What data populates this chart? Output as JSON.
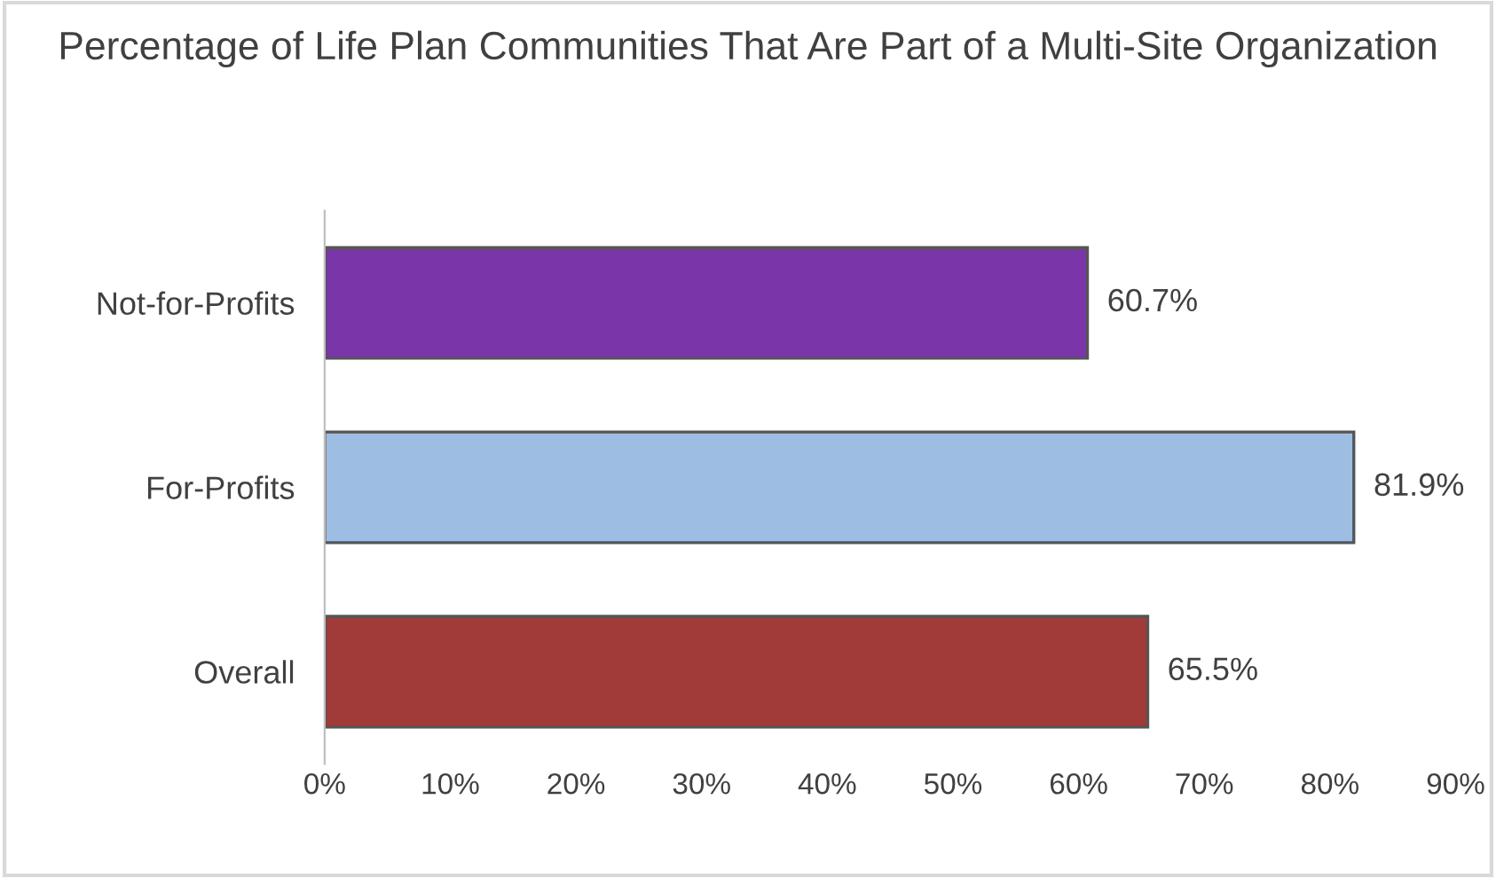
{
  "chart_data": {
    "type": "bar",
    "orientation": "horizontal",
    "title": "Percentage of Life Plan Communities That Are Part of a Multi-Site Organization",
    "categories": [
      "Not-for-Profits",
      "For-Profits",
      "Overall"
    ],
    "values": [
      60.7,
      81.9,
      65.5
    ],
    "colors": [
      "#7a36a9",
      "#9ebde3",
      "#a03b39"
    ],
    "value_labels": [
      "60.7%",
      "81.9%",
      "65.5%"
    ],
    "xlim": [
      0,
      90
    ],
    "xticks": [
      {
        "value": 0,
        "label": "0%"
      },
      {
        "value": 10,
        "label": "10%"
      },
      {
        "value": 20,
        "label": "20%"
      },
      {
        "value": 30,
        "label": "30%"
      },
      {
        "value": 40,
        "label": "40%"
      },
      {
        "value": 50,
        "label": "50%"
      },
      {
        "value": 60,
        "label": "60%"
      },
      {
        "value": 70,
        "label": "70%"
      },
      {
        "value": 80,
        "label": "80%"
      },
      {
        "value": 90,
        "label": "90%"
      }
    ],
    "grid": false,
    "legend": false
  }
}
